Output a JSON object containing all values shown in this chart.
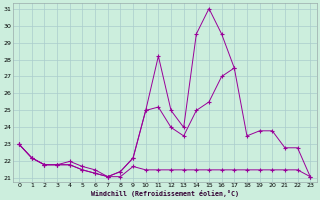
{
  "xlabel": "Windchill (Refroidissement éolien,°C)",
  "x_hours": [
    0,
    1,
    2,
    3,
    4,
    5,
    6,
    7,
    8,
    9,
    10,
    11,
    12,
    13,
    14,
    15,
    16,
    17,
    18,
    19,
    20,
    21,
    22,
    23
  ],
  "line_spike": [
    23.0,
    22.2,
    21.8,
    21.8,
    21.8,
    21.5,
    21.3,
    21.1,
    21.4,
    22.2,
    25.0,
    28.2,
    25.0,
    24.0,
    29.5,
    31.0,
    29.5,
    27.5,
    null,
    null,
    null,
    null,
    null,
    null
  ],
  "line_mid": [
    23.0,
    22.2,
    21.8,
    21.8,
    21.8,
    21.5,
    21.3,
    21.1,
    21.4,
    22.2,
    25.0,
    25.2,
    24.0,
    23.5,
    25.0,
    25.5,
    27.0,
    27.5,
    23.5,
    23.8,
    23.8,
    22.8,
    22.8,
    21.1
  ],
  "line_flat": [
    23.0,
    22.2,
    21.8,
    21.8,
    22.0,
    21.7,
    21.5,
    21.1,
    21.1,
    21.7,
    21.5,
    21.5,
    21.5,
    21.5,
    21.5,
    21.5,
    21.5,
    21.5,
    21.5,
    21.5,
    21.5,
    21.5,
    21.5,
    21.1
  ],
  "line_upper": [
    null,
    null,
    null,
    null,
    null,
    null,
    null,
    null,
    null,
    null,
    null,
    null,
    null,
    null,
    null,
    null,
    null,
    27.5,
    23.5,
    23.8,
    23.8,
    22.8,
    22.8,
    21.1
  ],
  "line_color": "#990099",
  "bg_color": "#cceedd",
  "grid_color": "#aacccc",
  "ylim": [
    21,
    31
  ],
  "xlim": [
    0,
    23
  ],
  "yticks": [
    21,
    22,
    23,
    24,
    25,
    26,
    27,
    28,
    29,
    30,
    31
  ],
  "xticks": [
    0,
    1,
    2,
    3,
    4,
    5,
    6,
    7,
    8,
    9,
    10,
    11,
    12,
    13,
    14,
    15,
    16,
    17,
    18,
    19,
    20,
    21,
    22,
    23
  ]
}
